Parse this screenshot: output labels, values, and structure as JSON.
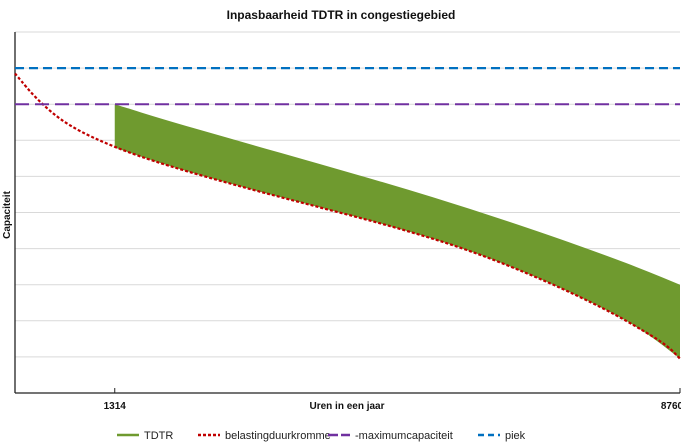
{
  "chart_data": {
    "type": "area",
    "title": "Inpasbaarheid TDTR in congestiegebied",
    "xlabel": "Uren in een jaar",
    "ylabel": "Capaciteit",
    "xlim": [
      0,
      8760
    ],
    "ylim": [
      0,
      10
    ],
    "xticks": [
      1314,
      8760
    ],
    "xtick_labels": [
      "1314",
      "8760"
    ],
    "grid": true,
    "legend_position": "bottom",
    "series": [
      {
        "name": "TDTR",
        "type": "band",
        "color": "#6f9a2f",
        "x": [
          1314,
          2000,
          3000,
          4000,
          5000,
          6000,
          7000,
          7800,
          8300,
          8760
        ],
        "upper": [
          8.0,
          7.55,
          6.95,
          6.35,
          5.75,
          5.1,
          4.4,
          3.8,
          3.4,
          3.0
        ]
      },
      {
        "name": "belastingduurkromme",
        "type": "line",
        "color": "#c00000",
        "dash": "short",
        "x": [
          0,
          300,
          700,
          1314,
          2000,
          3000,
          4000,
          5000,
          6000,
          7000,
          7800,
          8300,
          8600,
          8760
        ],
        "y": [
          8.85,
          8.1,
          7.4,
          6.8,
          6.3,
          5.7,
          5.15,
          4.6,
          3.95,
          3.1,
          2.3,
          1.7,
          1.3,
          0.95
        ]
      },
      {
        "name": "maximumcapaciteit",
        "type": "hline",
        "color": "#7030a0",
        "dash": "long",
        "y": 8
      },
      {
        "name": "piek",
        "type": "hline",
        "color": "#0070c0",
        "dash": "medium",
        "y": 9
      }
    ],
    "legend": [
      "TDTR",
      "belastingduurkromme",
      "-maximumcapaciteit",
      "piek"
    ]
  }
}
